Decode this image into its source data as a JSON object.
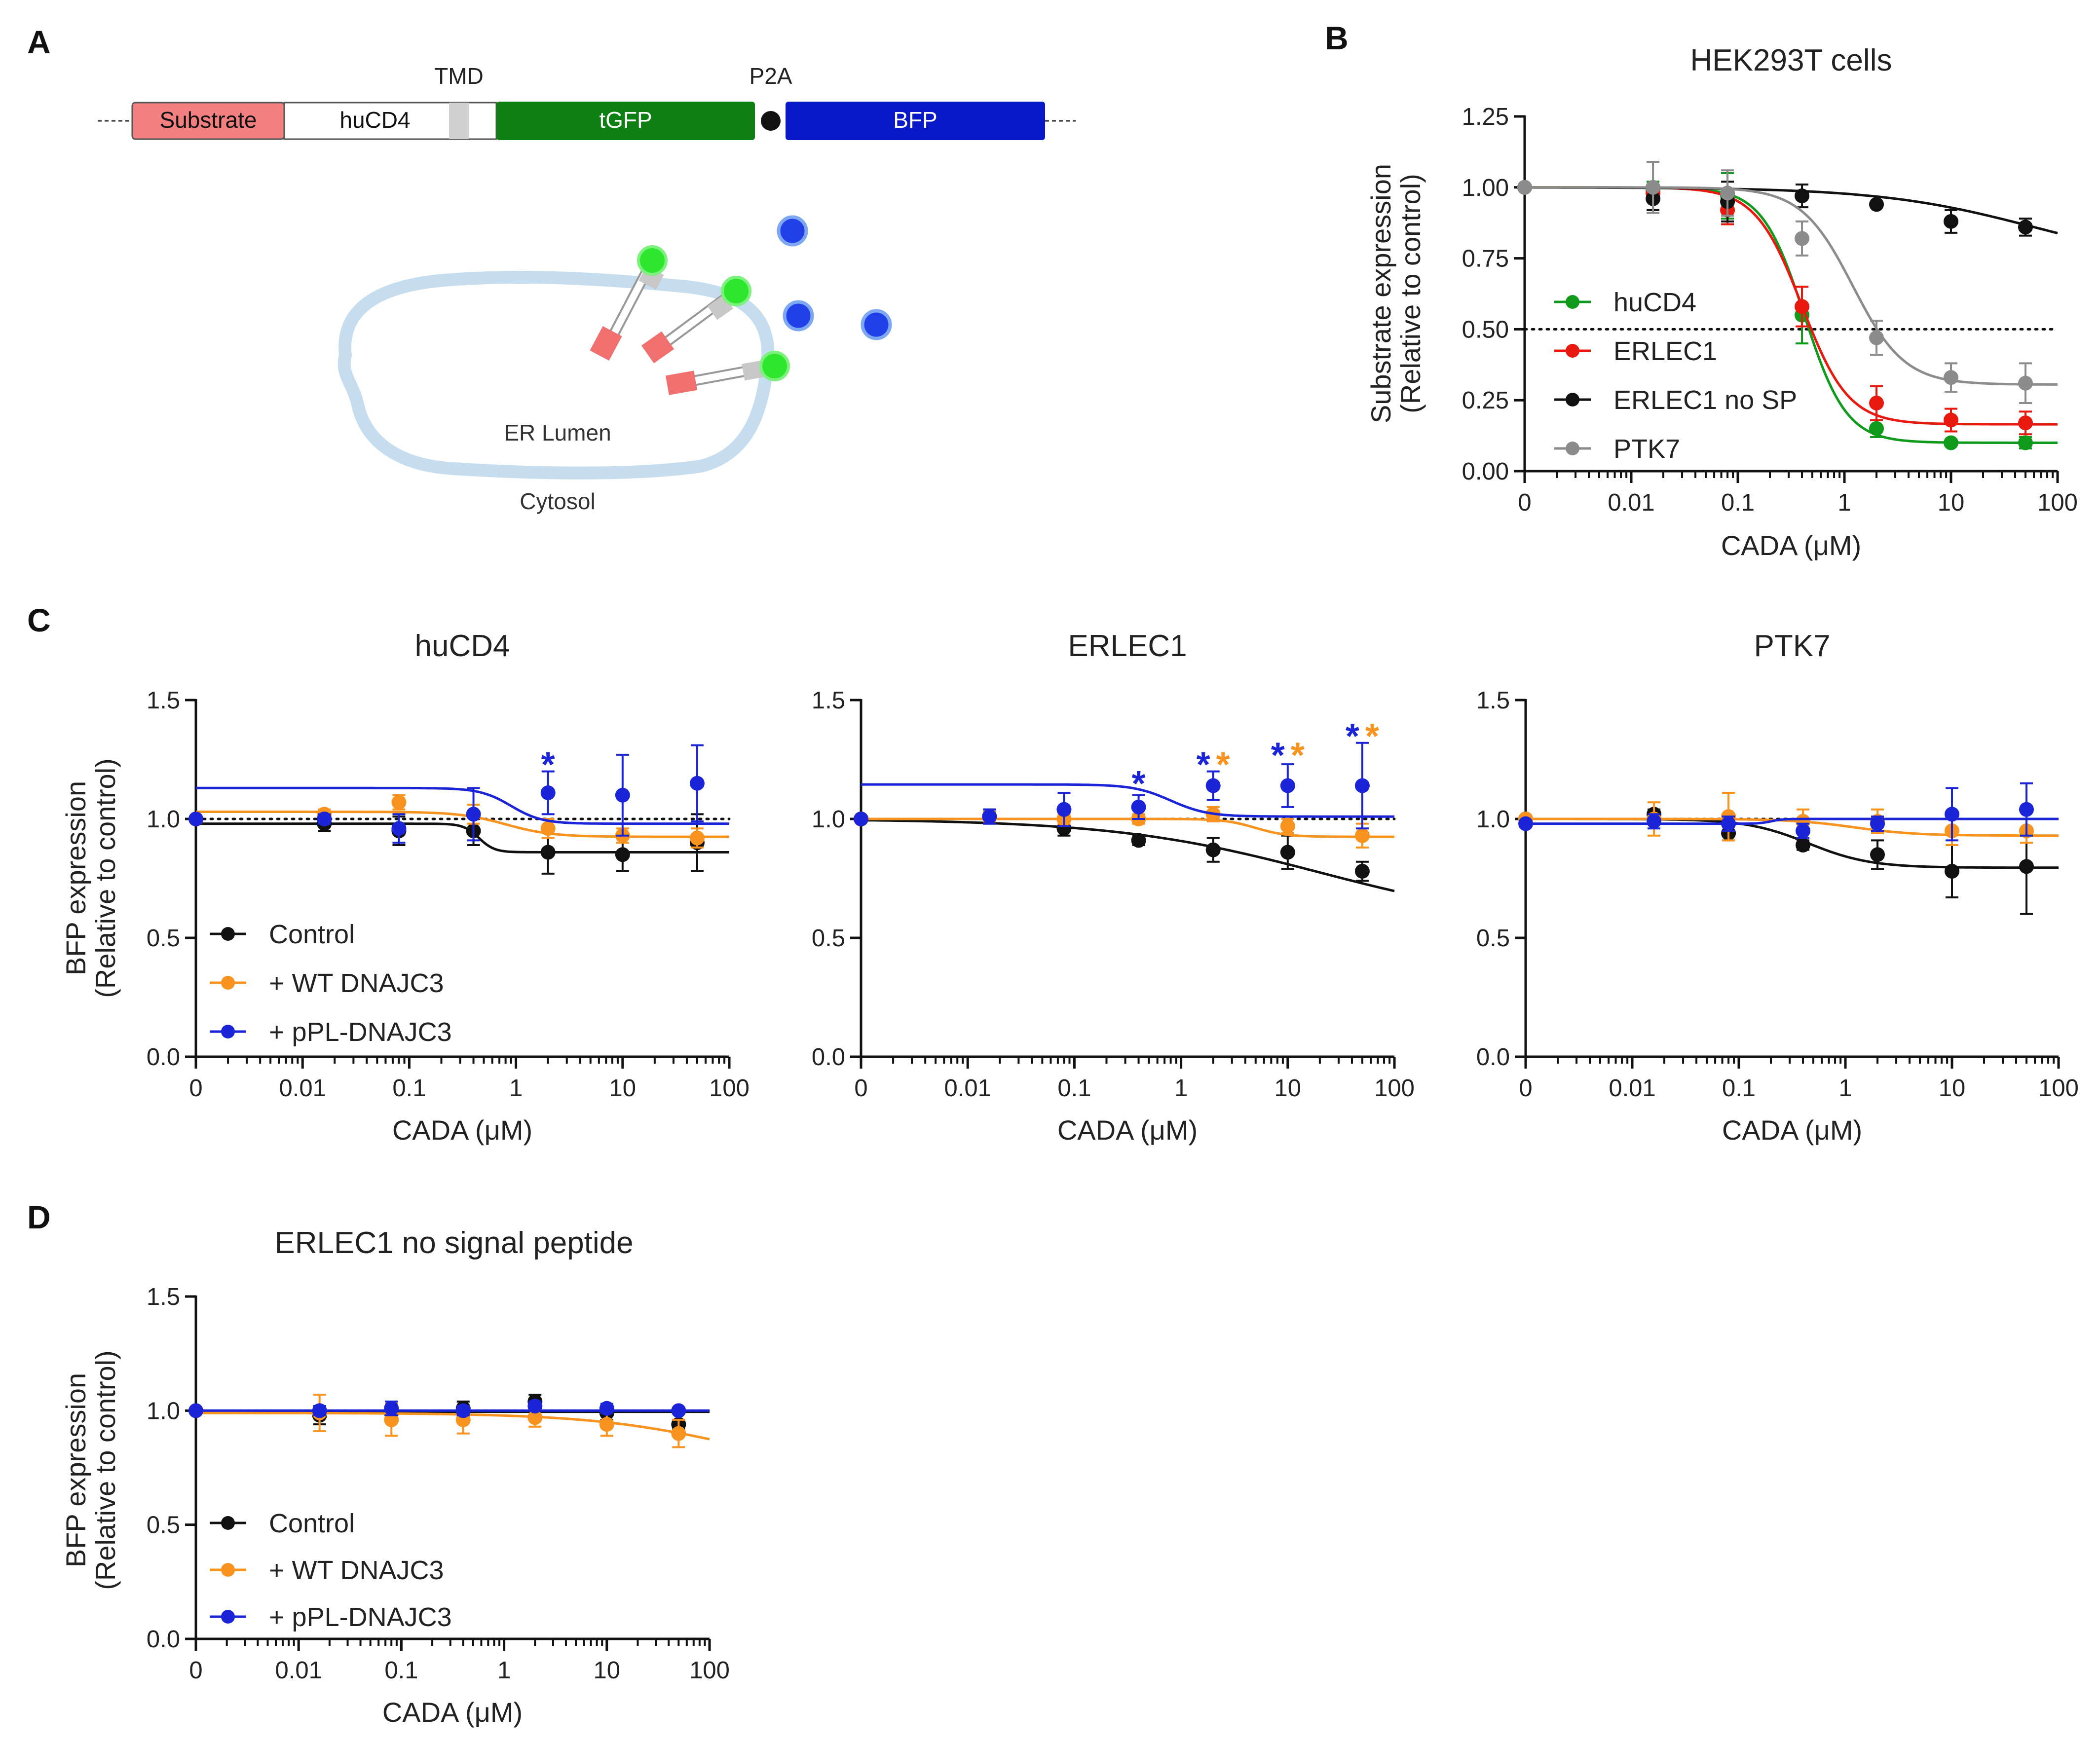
{
  "panel_labels": {
    "a": "A",
    "b": "B",
    "c": "C",
    "d": "D"
  },
  "construct": {
    "segments": [
      "Substrate",
      "huCD4",
      "tGFP",
      "BFP"
    ],
    "tmd_label": "TMD",
    "p2a_label": "P2A",
    "er_lumen_label": "ER Lumen",
    "cytosol_label": "Cytosol"
  },
  "colors": {
    "black": "#111111",
    "orange": "#F7931E",
    "blue": "#1B24D6",
    "green": "#0F9A1C",
    "red": "#E8190F",
    "grey": "#8C8C8C",
    "substrate": "#F28080",
    "tgfp": "#0E7F12",
    "bfp": "#0A19C8",
    "tmd": "#D0D0D0",
    "membrane": "#C6DDF0"
  },
  "chart_data": [
    {
      "id": "B",
      "type": "line",
      "title": "HEK293T cells",
      "xlabel": "CADA (μM)",
      "ylabel": "Substrate expression",
      "ylabel2": "(Relative to control)",
      "xscale": "log-with-zero",
      "x_tick_labels": [
        "0",
        "0.01",
        "0.1",
        "1",
        "10",
        "100"
      ],
      "xlim": [
        0.001,
        100
      ],
      "ylim": [
        0,
        1.25
      ],
      "y_ticks": [
        0,
        0.25,
        0.5,
        0.75,
        1.0,
        1.25
      ],
      "y_tick_labels": [
        "0.00",
        "0.25",
        "0.50",
        "0.75",
        "1.00",
        "1.25"
      ],
      "reference_line": 0.5,
      "legend_position": "left-middle",
      "x": [
        0,
        0.016,
        0.08,
        0.4,
        2,
        10,
        50
      ],
      "series": [
        {
          "name": "huCD4",
          "color": "green",
          "values": [
            1.0,
            0.99,
            0.97,
            0.55,
            0.15,
            0.1,
            0.1
          ],
          "errors": [
            0,
            0.03,
            0.08,
            0.1,
            0.03,
            0.01,
            0.02
          ],
          "fit": {
            "bottom": 0.1,
            "top": 1.0,
            "ec50": 0.42,
            "hill": 2.2
          }
        },
        {
          "name": "ERLEC1",
          "color": "red",
          "values": [
            1.0,
            0.98,
            0.92,
            0.58,
            0.24,
            0.18,
            0.17
          ],
          "errors": [
            0,
            0.03,
            0.05,
            0.07,
            0.06,
            0.04,
            0.04
          ],
          "fit": {
            "bottom": 0.165,
            "top": 1.0,
            "ec50": 0.4,
            "hill": 2.0
          }
        },
        {
          "name": "ERLEC1 no SP",
          "color": "black",
          "values": [
            1.0,
            0.96,
            0.95,
            0.97,
            0.94,
            0.88,
            0.86
          ],
          "errors": [
            0,
            0.04,
            0.07,
            0.04,
            0.01,
            0.04,
            0.03
          ],
          "fit": {
            "bottom": 0.72,
            "top": 1.0,
            "ec50": 60,
            "hill": 0.6
          }
        },
        {
          "name": "PTK7",
          "color": "grey",
          "values": [
            1.0,
            1.0,
            0.98,
            0.82,
            0.47,
            0.33,
            0.31
          ],
          "errors": [
            0,
            0.09,
            0.08,
            0.06,
            0.06,
            0.05,
            0.07
          ],
          "fit": {
            "bottom": 0.305,
            "top": 1.0,
            "ec50": 1.2,
            "hill": 1.8
          }
        }
      ]
    },
    {
      "id": "C1",
      "type": "line",
      "title": "huCD4",
      "xlabel": "CADA (μM)",
      "ylabel": "BFP expression",
      "ylabel2": "(Relative to control)",
      "xscale": "log-with-zero",
      "x_tick_labels": [
        "0",
        "0.01",
        "0.1",
        "1",
        "10",
        "100"
      ],
      "xlim": [
        0.001,
        100
      ],
      "ylim": [
        0,
        1.5
      ],
      "y_ticks": [
        0,
        0.5,
        1.0,
        1.5
      ],
      "y_tick_labels": [
        "0.0",
        "0.5",
        "1.0",
        "1.5"
      ],
      "reference_line": 1.0,
      "legend_position": "bottom-left",
      "x": [
        0,
        0.016,
        0.08,
        0.4,
        2,
        10,
        50
      ],
      "series": [
        {
          "name": "Control",
          "color": "black",
          "values": [
            1.0,
            0.98,
            0.95,
            0.95,
            0.86,
            0.85,
            0.9
          ],
          "errors": [
            0,
            0.03,
            0.06,
            0.06,
            0.09,
            0.07,
            0.12
          ],
          "fit": {
            "bottom": 0.86,
            "top": 0.98,
            "ec50": 0.45,
            "hill": 6
          }
        },
        {
          "name": "+ WT DNAJC3",
          "color": "orange",
          "values": [
            1.0,
            1.02,
            1.07,
            1.02,
            0.96,
            0.93,
            0.92
          ],
          "errors": [
            0,
            0.02,
            0.03,
            0.04,
            0.04,
            0.03,
            0.04
          ],
          "fit": {
            "bottom": 0.925,
            "top": 1.03,
            "ec50": 0.8,
            "hill": 2
          }
        },
        {
          "name": "+ pPL-DNAJC3",
          "color": "blue",
          "values": [
            1.0,
            1.0,
            0.96,
            1.02,
            1.11,
            1.1,
            1.15
          ],
          "errors": [
            0,
            0.02,
            0.06,
            0.11,
            0.09,
            0.17,
            0.16
          ],
          "fit": {
            "bottom": 0.98,
            "top": 1.13,
            "ec50": 0.9,
            "hill": 3
          }
        }
      ],
      "annotations": [
        {
          "x": 2,
          "y": 1.26,
          "marks": [
            {
              "text": "*",
              "color": "blue"
            }
          ]
        }
      ]
    },
    {
      "id": "C2",
      "type": "line",
      "title": "ERLEC1",
      "xlabel": "CADA (μM)",
      "ylabel": "",
      "xscale": "log-with-zero",
      "x_tick_labels": [
        "0",
        "0.01",
        "0.1",
        "1",
        "10",
        "100"
      ],
      "xlim": [
        0.001,
        100
      ],
      "ylim": [
        0,
        1.5
      ],
      "y_ticks": [
        0,
        0.5,
        1.0,
        1.5
      ],
      "y_tick_labels": [
        "0.0",
        "0.5",
        "1.0",
        "1.5"
      ],
      "reference_line": 1.0,
      "x": [
        0,
        0.016,
        0.08,
        0.4,
        2,
        10,
        50
      ],
      "series": [
        {
          "name": "Control",
          "color": "black",
          "values": [
            1.0,
            1.01,
            0.96,
            0.91,
            0.87,
            0.86,
            0.78
          ],
          "errors": [
            0,
            0.03,
            0.03,
            0.02,
            0.05,
            0.07,
            0.04
          ],
          "fit": {
            "bottom": 0.55,
            "top": 1.0,
            "ec50": 20,
            "hill": 0.45
          }
        },
        {
          "name": "+ WT DNAJC3",
          "color": "orange",
          "values": [
            1.0,
            1.01,
            1.0,
            1.0,
            1.02,
            0.97,
            0.93
          ],
          "errors": [
            0,
            0.02,
            0.02,
            0.02,
            0.03,
            0.03,
            0.05
          ],
          "fit": {
            "bottom": 0.925,
            "top": 1.0,
            "ec50": 5,
            "hill": 3
          }
        },
        {
          "name": "+ pPL-DNAJC3",
          "color": "blue",
          "values": [
            1.0,
            1.01,
            1.04,
            1.05,
            1.14,
            1.14,
            1.14
          ],
          "errors": [
            0,
            0.03,
            0.07,
            0.05,
            0.06,
            0.09,
            0.18
          ],
          "fit": {
            "bottom": 1.01,
            "top": 1.145,
            "ec50": 0.8,
            "hill": 2.5
          }
        }
      ],
      "annotations": [
        {
          "x": 0.4,
          "y": 1.18,
          "marks": [
            {
              "text": "*",
              "color": "blue"
            }
          ]
        },
        {
          "x": 2,
          "y": 1.26,
          "marks": [
            {
              "text": "*",
              "color": "blue"
            },
            {
              "text": "*",
              "color": "orange"
            }
          ]
        },
        {
          "x": 10,
          "y": 1.3,
          "marks": [
            {
              "text": "*",
              "color": "blue"
            },
            {
              "text": "*",
              "color": "orange"
            }
          ]
        },
        {
          "x": 50,
          "y": 1.38,
          "marks": [
            {
              "text": "*",
              "color": "blue"
            },
            {
              "text": "*",
              "color": "orange"
            }
          ]
        }
      ]
    },
    {
      "id": "C3",
      "type": "line",
      "title": "PTK7",
      "xlabel": "CADA (μM)",
      "ylabel": "",
      "xscale": "log-with-zero",
      "x_tick_labels": [
        "0",
        "0.01",
        "0.1",
        "1",
        "10",
        "100"
      ],
      "xlim": [
        0.001,
        100
      ],
      "ylim": [
        0,
        1.5
      ],
      "y_ticks": [
        0,
        0.5,
        1.0,
        1.5
      ],
      "y_tick_labels": [
        "0.0",
        "0.5",
        "1.0",
        "1.5"
      ],
      "reference_line": 1.0,
      "x": [
        0,
        0.016,
        0.08,
        0.4,
        2,
        10,
        50
      ],
      "series": [
        {
          "name": "Control",
          "color": "black",
          "values": [
            1.0,
            1.02,
            0.94,
            0.89,
            0.85,
            0.78,
            0.8
          ],
          "errors": [
            0,
            0.02,
            0.03,
            0.02,
            0.06,
            0.11,
            0.2
          ],
          "fit": {
            "bottom": 0.795,
            "top": 1.0,
            "ec50": 0.45,
            "hill": 1.5
          }
        },
        {
          "name": "+ WT DNAJC3",
          "color": "orange",
          "values": [
            1.0,
            1.0,
            1.01,
            0.99,
            0.99,
            0.95,
            0.95
          ],
          "errors": [
            0,
            0.07,
            0.1,
            0.05,
            0.05,
            0.06,
            0.05
          ],
          "fit": {
            "bottom": 0.93,
            "top": 1.0,
            "ec50": 1.2,
            "hill": 1.5
          }
        },
        {
          "name": "+ pPL-DNAJC3",
          "color": "blue",
          "values": [
            0.98,
            0.99,
            0.98,
            0.95,
            0.98,
            1.02,
            1.04
          ],
          "errors": [
            0,
            0.03,
            0.03,
            0.03,
            0.03,
            0.11,
            0.11
          ],
          "fit": {
            "bottom": 1.0,
            "top": 0.98,
            "ec50": 0.2,
            "hill": 8
          }
        }
      ]
    },
    {
      "id": "D",
      "type": "line",
      "title": "ERLEC1 no signal peptide",
      "xlabel": "CADA (μM)",
      "ylabel": "BFP expression",
      "ylabel2": "(Relative to control)",
      "xscale": "log-with-zero",
      "x_tick_labels": [
        "0",
        "0.01",
        "0.1",
        "1",
        "10",
        "100"
      ],
      "xlim": [
        0.001,
        100
      ],
      "ylim": [
        0,
        1.5
      ],
      "y_ticks": [
        0,
        0.5,
        1.0,
        1.5
      ],
      "y_tick_labels": [
        "0.0",
        "0.5",
        "1.0",
        "1.5"
      ],
      "reference_line": 1.0,
      "legend_position": "bottom-left",
      "x": [
        0,
        0.016,
        0.08,
        0.4,
        2,
        10,
        50
      ],
      "series": [
        {
          "name": "Control",
          "color": "black",
          "values": [
            1.0,
            0.98,
            0.99,
            1.01,
            1.04,
            0.99,
            0.94
          ],
          "errors": [
            0,
            0.04,
            0.04,
            0.03,
            0.03,
            0.03,
            0.02
          ],
          "fit": {
            "bottom": 0.995,
            "top": 0.995,
            "ec50": 1,
            "hill": 1
          }
        },
        {
          "name": "+ WT DNAJC3",
          "color": "orange",
          "values": [
            1.0,
            0.99,
            0.96,
            0.96,
            0.97,
            0.94,
            0.9
          ],
          "errors": [
            0,
            0.08,
            0.07,
            0.06,
            0.04,
            0.05,
            0.06
          ],
          "fit": {
            "bottom": 0.7,
            "top": 0.99,
            "ec50": 200,
            "hill": 0.6
          }
        },
        {
          "name": "+ pPL-DNAJC3",
          "color": "blue",
          "values": [
            1.0,
            1.0,
            1.01,
            1.0,
            1.02,
            1.01,
            1.0
          ],
          "errors": [
            0,
            0.02,
            0.03,
            0.02,
            0.02,
            0.02,
            0.01
          ],
          "fit": {
            "bottom": 1.0,
            "top": 1.0,
            "ec50": 1,
            "hill": 1
          }
        }
      ]
    }
  ]
}
